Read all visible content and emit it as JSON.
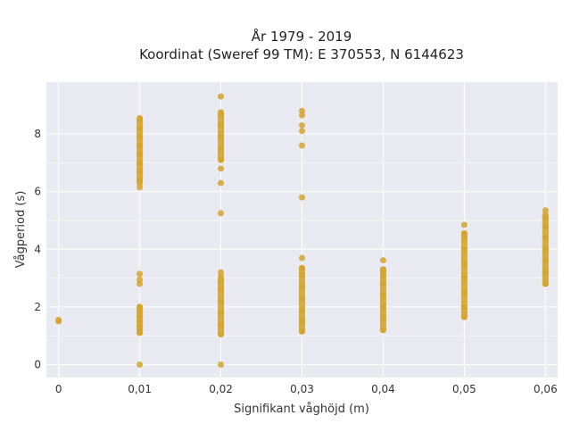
{
  "chart_data": {
    "type": "scatter",
    "title": [
      "År 1979 - 2019",
      "Koordinat (Sweref 99 TM): E 370553, N 6144623"
    ],
    "xlabel": "Signifikant våghöjd (m)",
    "ylabel": "Vågperiod (s)",
    "x_ticks": [
      0,
      0.01,
      0.02,
      0.03,
      0.04,
      0.05,
      0.06
    ],
    "x_tick_labels": [
      "0",
      "0,01",
      "0,02",
      "0,03",
      "0,04",
      "0,05",
      "0,06"
    ],
    "y_ticks": [
      0,
      2,
      4,
      6,
      8
    ],
    "y_tick_labels": [
      "0",
      "2",
      "4",
      "6",
      "8"
    ],
    "xlim": [
      -0.0015,
      0.0615
    ],
    "ylim": [
      -0.45,
      9.8
    ],
    "grid": true,
    "legend": "none",
    "marker_color": "#d4a52a",
    "plot_background": "#e9e9f1",
    "series": [
      {
        "points": [
          [
            0,
            1.5
          ],
          [
            0,
            1.55
          ],
          [
            0.01,
            0
          ],
          [
            0.01,
            1.1
          ],
          [
            0.01,
            1.3
          ],
          [
            0.01,
            1.5
          ],
          [
            0.01,
            1.7
          ],
          [
            0.01,
            1.9
          ],
          [
            0.01,
            2.0
          ],
          [
            0.01,
            2.8
          ],
          [
            0.01,
            2.95
          ],
          [
            0.01,
            3.15
          ],
          [
            0.01,
            6.15
          ],
          [
            0.01,
            6.4
          ],
          [
            0.01,
            6.7
          ],
          [
            0.01,
            7.0
          ],
          [
            0.01,
            7.3
          ],
          [
            0.01,
            7.6
          ],
          [
            0.01,
            7.9
          ],
          [
            0.01,
            8.2
          ],
          [
            0.01,
            8.5
          ],
          [
            0.02,
            0
          ],
          [
            0.02,
            1.05
          ],
          [
            0.02,
            1.4
          ],
          [
            0.02,
            1.8
          ],
          [
            0.02,
            2.2
          ],
          [
            0.02,
            2.6
          ],
          [
            0.02,
            2.9
          ],
          [
            0.02,
            3.05
          ],
          [
            0.02,
            3.2
          ],
          [
            0.02,
            5.25
          ],
          [
            0.02,
            6.3
          ],
          [
            0.02,
            6.8
          ],
          [
            0.02,
            7.1
          ],
          [
            0.02,
            7.5
          ],
          [
            0.02,
            7.9
          ],
          [
            0.02,
            8.3
          ],
          [
            0.02,
            8.7
          ],
          [
            0.02,
            9.3
          ],
          [
            0.03,
            1.15
          ],
          [
            0.03,
            1.5
          ],
          [
            0.03,
            1.9
          ],
          [
            0.03,
            2.3
          ],
          [
            0.03,
            2.7
          ],
          [
            0.03,
            3.1
          ],
          [
            0.03,
            3.35
          ],
          [
            0.03,
            3.7
          ],
          [
            0.03,
            5.8
          ],
          [
            0.03,
            7.6
          ],
          [
            0.03,
            8.1
          ],
          [
            0.03,
            8.3
          ],
          [
            0.03,
            8.65
          ],
          [
            0.03,
            8.8
          ],
          [
            0.04,
            1.2
          ],
          [
            0.04,
            1.6
          ],
          [
            0.04,
            2.0
          ],
          [
            0.04,
            2.4
          ],
          [
            0.04,
            2.8
          ],
          [
            0.04,
            3.1
          ],
          [
            0.04,
            3.3
          ],
          [
            0.04,
            3.62
          ],
          [
            0.05,
            1.65
          ],
          [
            0.05,
            2.0
          ],
          [
            0.05,
            2.5
          ],
          [
            0.05,
            3.0
          ],
          [
            0.05,
            3.5
          ],
          [
            0.05,
            4.0
          ],
          [
            0.05,
            4.4
          ],
          [
            0.05,
            4.55
          ],
          [
            0.05,
            4.85
          ],
          [
            0.06,
            2.8
          ],
          [
            0.06,
            3.2
          ],
          [
            0.06,
            3.6
          ],
          [
            0.06,
            4.0
          ],
          [
            0.06,
            4.4
          ],
          [
            0.06,
            4.8
          ],
          [
            0.06,
            5.1
          ],
          [
            0.06,
            5.35
          ]
        ],
        "ranges": [
          [
            0.01,
            1.1,
            2.0
          ],
          [
            0.01,
            6.3,
            8.55
          ],
          [
            0.02,
            1.05,
            2.95
          ],
          [
            0.02,
            7.1,
            8.75
          ],
          [
            0.03,
            1.15,
            3.35
          ],
          [
            0.04,
            1.2,
            3.3
          ],
          [
            0.05,
            1.65,
            4.55
          ],
          [
            0.06,
            2.8,
            5.2
          ]
        ]
      }
    ]
  }
}
